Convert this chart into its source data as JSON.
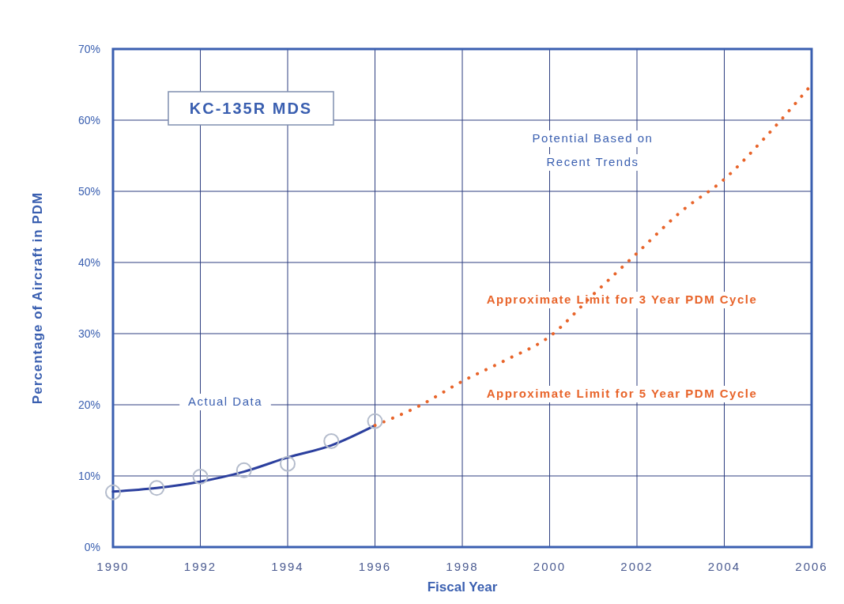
{
  "chart_data": {
    "type": "line",
    "title": "KC-135R MDS",
    "xlabel": "Fiscal Year",
    "ylabel": "Percentage of Aircraft in PDM",
    "annotations": [
      "Actual Data",
      "Potential Based on\nRecent Trends",
      "Approximate Limit for 3 Year PDM Cycle",
      "Approximate Limit for 5 Year PDM Cycle"
    ],
    "xlim": [
      1990,
      2006
    ],
    "xticks": [
      1990,
      1992,
      1994,
      1996,
      1998,
      2000,
      2002,
      2004,
      2006
    ],
    "ylim": [
      0,
      70
    ],
    "yticks": [
      {
        "value": 0,
        "label": "0%"
      },
      {
        "value": 10,
        "label": "10%"
      },
      {
        "value": 20,
        "label": "20%"
      },
      {
        "value": 30,
        "label": "30%"
      },
      {
        "value": 40,
        "label": "40%"
      },
      {
        "value": 50,
        "label": "50%"
      },
      {
        "value": 60,
        "label": "60%"
      },
      {
        "value": 70,
        "label": "70%"
      }
    ],
    "grid": true,
    "series": [
      {
        "type": "scatter",
        "color": "#b4bccc",
        "marker": "circle",
        "x": [
          1990,
          1991,
          1992,
          1993,
          1994,
          1995,
          1996
        ],
        "values": [
          7.7,
          8.3,
          9.9,
          10.8,
          11.7,
          14.9,
          17.7
        ]
      },
      {
        "color": "#2b3f9e",
        "line_style": "solid",
        "x": [
          1990,
          1991,
          1992,
          1993,
          1994,
          1995,
          1996
        ],
        "values": [
          7.8,
          8.3,
          9.2,
          10.6,
          12.6,
          14.3,
          17.1
        ]
      },
      {
        "color": "#e8642a",
        "line_style": "dotted",
        "x": [
          1996,
          1997,
          1998,
          1999,
          2000,
          2001,
          2002,
          2003,
          2004,
          2005,
          2006
        ],
        "values": [
          17.1,
          19.8,
          23.3,
          26.3,
          29.6,
          35.5,
          41.3,
          47.1,
          51.7,
          58,
          65
        ]
      }
    ]
  }
}
